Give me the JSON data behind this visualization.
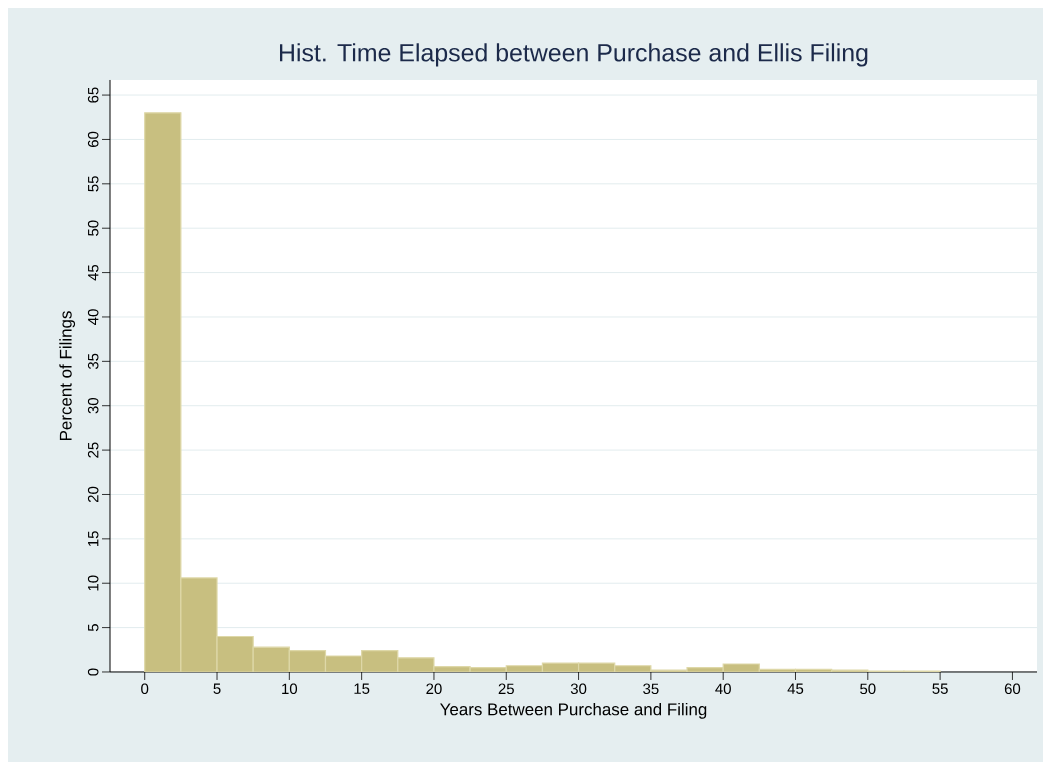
{
  "chart_data": {
    "type": "histogram",
    "title": "Hist. Time Elapsed between Purchase and Ellis Filing",
    "xlabel": "Years Between Purchase and Filing",
    "ylabel": "Percent of Filings",
    "bins": [
      0,
      2.5,
      5,
      7.5,
      10,
      12.5,
      15,
      17.5,
      20,
      22.5,
      25,
      27.5,
      30,
      32.5,
      35,
      37.5,
      40,
      42.5,
      45,
      47.5,
      50,
      52.5,
      55
    ],
    "values": [
      63,
      10.6,
      4.0,
      2.8,
      2.4,
      1.8,
      2.4,
      1.6,
      0.6,
      0.5,
      0.7,
      1.0,
      1.0,
      0.7,
      0.2,
      0.5,
      0.9,
      0.3,
      0.3,
      0.2,
      0.1,
      0.1
    ],
    "color": "#c8bf80",
    "xlim": [
      -2.4,
      61.7
    ],
    "ylim": [
      0,
      66.7
    ],
    "xticks": [
      0,
      5,
      10,
      15,
      20,
      25,
      30,
      35,
      40,
      45,
      50,
      55,
      60
    ],
    "yticks": [
      0,
      5,
      10,
      15,
      20,
      25,
      30,
      35,
      40,
      45,
      50,
      55,
      60,
      65
    ],
    "grid": "y"
  }
}
